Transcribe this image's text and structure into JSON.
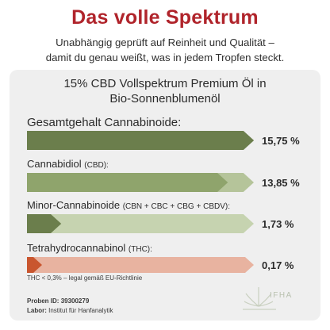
{
  "header": {
    "title": "Das volle Spektrum",
    "subtitle_line1": "Unabhängig geprüft auf Reinheit und Qualität –",
    "subtitle_line2": "damit du genau weißt, was in jedem Tropfen steckt."
  },
  "card": {
    "title_line1": "15% CBD Vollspektrum Premium Öl in",
    "title_line2": "Bio-Sonnenblumenöl"
  },
  "rows": [
    {
      "label": "Gesamtgehalt Cannabinoide:",
      "label_small": "",
      "value": "15,75 %",
      "fraction": 1.0,
      "color_main": "#6b7e4c",
      "color_tip": "#6b7e4c"
    },
    {
      "label": "Cannabidiol ",
      "label_small": "(CBD):",
      "value": "13,85 %",
      "fraction": 0.88,
      "color_main": "#8fa46c",
      "color_tip": "#b5c49a"
    },
    {
      "label": "Minor-Cannabinoide ",
      "label_small": "(CBN + CBC + CBG + CBDV):",
      "value": "1,73 %",
      "fraction": 0.11,
      "color_main": "#6b7e4c",
      "color_tip": "#c6d3b0"
    },
    {
      "label": "Tetrahydrocannabinol ",
      "label_small": "(THC):",
      "value": "0,17 %",
      "fraction": 0.011,
      "color_main": "#c9562f",
      "color_tip": "#e8b3a0"
    }
  ],
  "note": "THC < 0,3% – legal gemäß EU-Richtlinie",
  "footer": {
    "proben_label": "Proben ID:",
    "proben_value": "39300279",
    "labor_label": "Labor:",
    "labor_value": "Institut für Hanfanalytik"
  },
  "logo": {
    "text": "IFHA",
    "icon": "cannabis-leaf-icon"
  }
}
